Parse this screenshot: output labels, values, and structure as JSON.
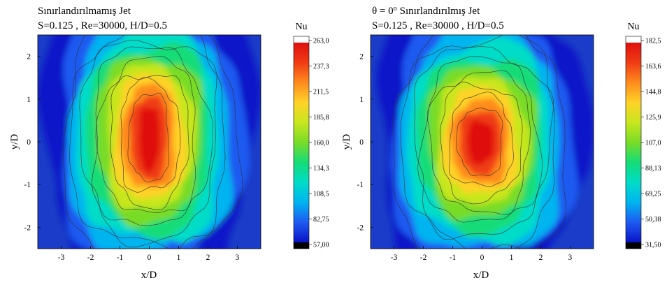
{
  "chart_data": [
    {
      "type": "heatmap",
      "title": "Sınırlandırılmamış Jet",
      "subtitle": "S=0.125 , Re=30000, H/D=0.5",
      "xlabel": "x/D",
      "ylabel": "y/D",
      "xlim": [
        -3.8,
        3.8
      ],
      "ylim": [
        -2.5,
        2.5
      ],
      "xticks": [
        "-3",
        "-2",
        "-1",
        "0",
        "1",
        "2",
        "3"
      ],
      "yticks": [
        "-2",
        "-1",
        "0",
        "1",
        "2"
      ],
      "colorbar_label": "Nu",
      "colorbar_range": [
        57.0,
        263.0
      ],
      "colorbar_ticks": [
        "263,0",
        "237,3",
        "211,5",
        "185,8",
        "160,0",
        "134,3",
        "108,5",
        "82,75",
        "57,00"
      ],
      "contour_levels_count": 8,
      "peak_location": [
        0.0,
        0.1
      ],
      "peak_value": 263.0,
      "colormap": [
        "#000000",
        "#0a14c8",
        "#1e5af0",
        "#00b4f0",
        "#00dcc8",
        "#14dc78",
        "#78dc28",
        "#c8e61e",
        "#ffd228",
        "#ff8c1e",
        "#f03c14",
        "#e01010",
        "#ffffff"
      ],
      "shape": "elongated-vertical"
    },
    {
      "type": "heatmap",
      "title_prefix": "θ = 0",
      "title_superscript": "o",
      "title": "Sınırlandırılmış Jet",
      "subtitle": "S=0.125 , Re=30000 , H/D=0.5",
      "xlabel": "x/D",
      "ylabel": "y/D",
      "xlim": [
        -3.8,
        3.8
      ],
      "ylim": [
        -2.5,
        2.5
      ],
      "xticks": [
        "-3",
        "-2",
        "-1",
        "0",
        "1",
        "2",
        "3"
      ],
      "yticks": [
        "-2",
        "-1",
        "0",
        "1",
        "2"
      ],
      "colorbar_label": "Nu",
      "colorbar_range": [
        31.5,
        182.5
      ],
      "colorbar_ticks": [
        "182,5",
        "163,6",
        "144,8",
        "125,9",
        "107,0",
        "88,13",
        "69,25",
        "50,38",
        "31,50"
      ],
      "contour_levels_count": 8,
      "peak_location": [
        -0.05,
        0.0
      ],
      "peak_value": 182.5,
      "colormap": [
        "#000000",
        "#0a14c8",
        "#1e5af0",
        "#00b4f0",
        "#00dcc8",
        "#14dc78",
        "#78dc28",
        "#c8e61e",
        "#ffd228",
        "#ff8c1e",
        "#f03c14",
        "#e01010",
        "#ffffff"
      ],
      "shape": "roughly-circular"
    }
  ]
}
